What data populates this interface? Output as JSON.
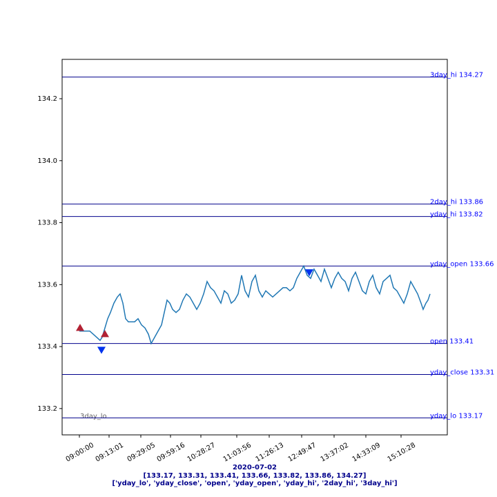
{
  "chart_data": {
    "type": "line",
    "xlabel": [
      "2020-07-02",
      "[133.17, 133.31, 133.41, 133.66, 133.82, 133.86, 134.27]",
      "['yday_lo', 'yday_close', 'open', 'yday_open', 'yday_hi', '2day_hi', '3day_hi']"
    ],
    "xlabel_color": "#00008b",
    "xlim": [
      -25,
      533
    ],
    "xticks": [
      {
        "value": 0,
        "label": "09:00:00"
      },
      {
        "value": 43,
        "label": "09:13:01"
      },
      {
        "value": 89,
        "label": "09:29:05"
      },
      {
        "value": 132,
        "label": "09:59:16"
      },
      {
        "value": 176,
        "label": "10:28:27"
      },
      {
        "value": 228,
        "label": "11:03:56"
      },
      {
        "value": 275,
        "label": "11:26:13"
      },
      {
        "value": 322,
        "label": "12:49:47"
      },
      {
        "value": 369,
        "label": "13:37:02"
      },
      {
        "value": 415,
        "label": "14:33:09"
      },
      {
        "value": 466,
        "label": "15:10:28"
      }
    ],
    "ylim": [
      133.115,
      134.327
    ],
    "yticks": [
      133.2,
      133.4,
      133.6,
      133.8,
      {
        "value": 134,
        "label": "134.0"
      },
      134.2
    ],
    "series": [
      {
        "color": "#1f77b4",
        "x": [
          0,
          5,
          10,
          15,
          20,
          25,
          30,
          33,
          37,
          41,
          45,
          50,
          55,
          59,
          63,
          67,
          71,
          75,
          80,
          85,
          90,
          95,
          100,
          104,
          109,
          114,
          119,
          123,
          127,
          131,
          135,
          140,
          145,
          150,
          155,
          160,
          165,
          170,
          175,
          180,
          185,
          190,
          195,
          200,
          205,
          210,
          215,
          220,
          225,
          230,
          235,
          240,
          245,
          250,
          255,
          260,
          265,
          270,
          275,
          280,
          285,
          290,
          295,
          300,
          305,
          310,
          315,
          320,
          325,
          330,
          335,
          340,
          345,
          350,
          355,
          360,
          365,
          370,
          375,
          380,
          385,
          390,
          395,
          400,
          405,
          410,
          415,
          420,
          425,
          430,
          435,
          440,
          445,
          450,
          455,
          460,
          465,
          470,
          475,
          480,
          485,
          490,
          495,
          498,
          502,
          505,
          508
        ],
        "values": [
          133.45,
          133.45,
          133.45,
          133.45,
          133.44,
          133.43,
          133.42,
          133.43,
          133.46,
          133.49,
          133.51,
          133.54,
          133.56,
          133.57,
          133.54,
          133.49,
          133.48,
          133.48,
          133.48,
          133.49,
          133.47,
          133.46,
          133.44,
          133.41,
          133.43,
          133.45,
          133.47,
          133.51,
          133.55,
          133.54,
          133.52,
          133.51,
          133.52,
          133.55,
          133.57,
          133.56,
          133.54,
          133.52,
          133.54,
          133.57,
          133.61,
          133.59,
          133.58,
          133.56,
          133.54,
          133.58,
          133.57,
          133.54,
          133.55,
          133.57,
          133.63,
          133.58,
          133.56,
          133.61,
          133.63,
          133.58,
          133.56,
          133.58,
          133.57,
          133.56,
          133.57,
          133.58,
          133.59,
          133.59,
          133.58,
          133.59,
          133.62,
          133.64,
          133.66,
          133.63,
          133.62,
          133.65,
          133.63,
          133.61,
          133.65,
          133.62,
          133.59,
          133.62,
          133.64,
          133.62,
          133.61,
          133.58,
          133.62,
          133.64,
          133.61,
          133.58,
          133.57,
          133.61,
          133.63,
          133.59,
          133.57,
          133.61,
          133.62,
          133.63,
          133.59,
          133.58,
          133.56,
          133.54,
          133.57,
          133.61,
          133.59,
          133.57,
          133.54,
          133.52,
          133.54,
          133.55,
          133.57
        ]
      }
    ],
    "markers": [
      {
        "marker": "up",
        "color": "#b22234",
        "x": [
          1,
          37
        ],
        "values": [
          133.46,
          133.44
        ]
      },
      {
        "marker": "down",
        "color": "#0033ee",
        "x": [
          32,
          333
        ],
        "values": [
          133.39,
          133.64
        ]
      }
    ],
    "hlines": [
      {
        "value": 134.27,
        "label": "3day_hi 134.27"
      },
      {
        "value": 133.86,
        "label": "2day_hi 133.86"
      },
      {
        "value": 133.82,
        "label": "yday_hi 133.82"
      },
      {
        "value": 133.66,
        "label": "yday_open 133.66"
      },
      {
        "value": 133.41,
        "label": "open 133.41"
      },
      {
        "value": 133.31,
        "label": "yday_close 133.31"
      },
      {
        "value": 133.17,
        "label": "yday_lo 133.17"
      }
    ],
    "hline_color": "#00008b",
    "hline_label_color": "#0000ff",
    "annotation": "3day_lo"
  }
}
